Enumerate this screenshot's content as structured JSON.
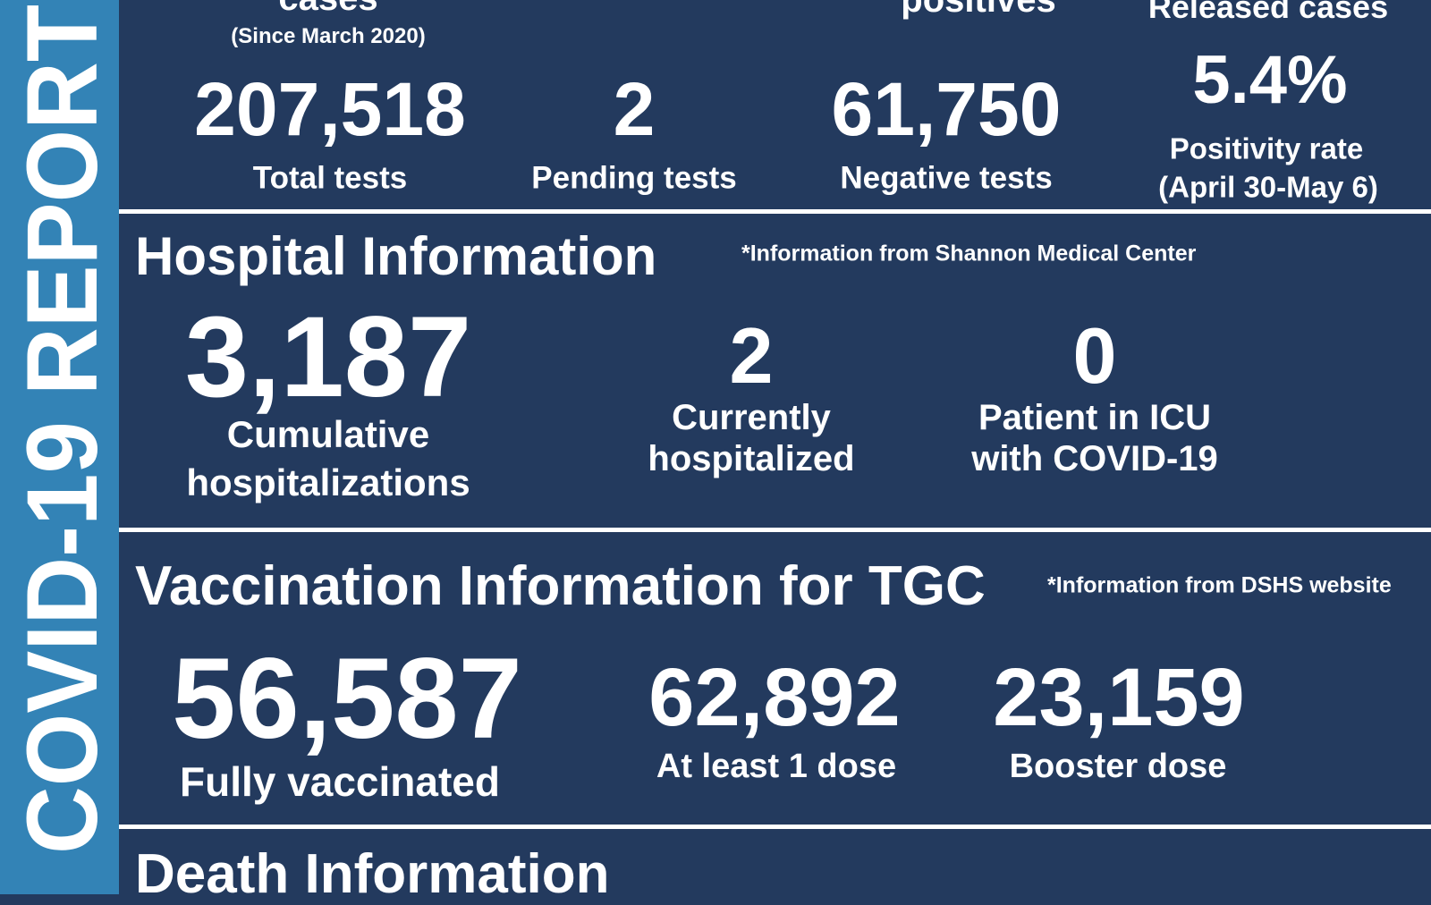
{
  "sidebar_title": "COVID-19 REPORT",
  "testing": {
    "cut_headers": [
      "cases",
      "positives",
      "Released cases"
    ],
    "since": "(Since March 2020)",
    "stats": [
      {
        "value": "207,518",
        "label": "Total tests"
      },
      {
        "value": "2",
        "label": "Pending tests"
      },
      {
        "value": "61,750",
        "label": "Negative tests"
      }
    ],
    "positivity": {
      "value": "5.4%",
      "label": "Positivity rate",
      "period": "(April 30-May 6)"
    }
  },
  "hospital": {
    "title": "Hospital Information",
    "note": "*Information from Shannon Medical Center",
    "stats": [
      {
        "value": "3,187",
        "label": [
          "Cumulative",
          "hospitalizations"
        ]
      },
      {
        "value": "2",
        "label": [
          "Currently",
          "hospitalized"
        ]
      },
      {
        "value": "0",
        "label": [
          "Patient in ICU",
          "with COVID-19"
        ]
      }
    ]
  },
  "vaccination": {
    "title": "Vaccination Information for TGC",
    "note": "*Information from DSHS website",
    "stats": [
      {
        "value": "56,587",
        "label": "Fully vaccinated"
      },
      {
        "value": "62,892",
        "label": "At least 1 dose"
      },
      {
        "value": "23,159",
        "label": "Booster dose"
      }
    ]
  },
  "death": {
    "title": "Death Information"
  }
}
